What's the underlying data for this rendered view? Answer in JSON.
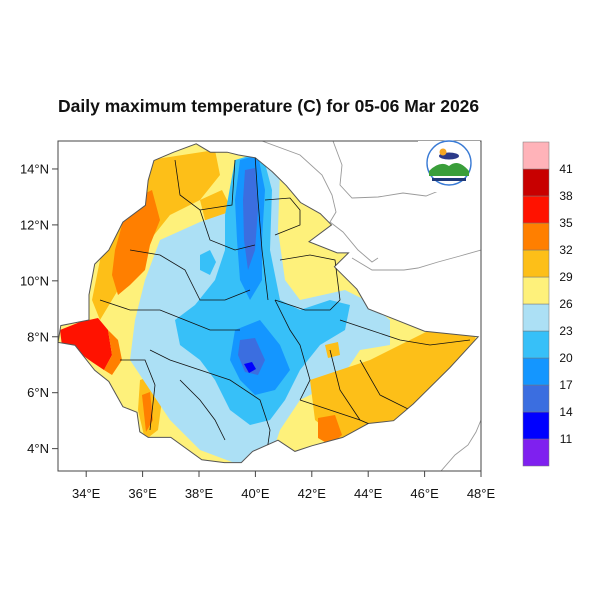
{
  "title": "Daily maximum temperature (C) for 05-06 Mar 2026",
  "map": {
    "region": "Ethiopia",
    "variable": "Daily maximum temperature",
    "units": "C",
    "lon_range": [
      33,
      48
    ],
    "lat_range": [
      3.2,
      15
    ],
    "x_ticks": [
      {
        "value": 34,
        "label": "34°E"
      },
      {
        "value": 36,
        "label": "36°E"
      },
      {
        "value": 38,
        "label": "38°E"
      },
      {
        "value": 40,
        "label": "40°E"
      },
      {
        "value": 42,
        "label": "42°E"
      },
      {
        "value": 44,
        "label": "44°E"
      },
      {
        "value": 46,
        "label": "46°E"
      },
      {
        "value": 48,
        "label": "48°E"
      }
    ],
    "y_ticks": [
      {
        "value": 4,
        "label": "4°N"
      },
      {
        "value": 6,
        "label": "6°N"
      },
      {
        "value": 8,
        "label": "8°N"
      },
      {
        "value": 10,
        "label": "10°N"
      },
      {
        "value": 12,
        "label": "12°N"
      },
      {
        "value": 14,
        "label": "14°N"
      }
    ],
    "logo": {
      "alt": "Ethiopian Meteorology Institute logo"
    }
  },
  "colorbar": {
    "levels": [
      "11",
      "14",
      "17",
      "20",
      "23",
      "26",
      "29",
      "32",
      "35",
      "38",
      "41"
    ],
    "colors": [
      "#7f20ef",
      "#0000ff",
      "#3b6ee0",
      "#1496ff",
      "#37c0f8",
      "#ace0f5",
      "#fef17b",
      "#fdbf18",
      "#ff7f00",
      "#ff1200",
      "#c80000",
      "#ffb3b9"
    ]
  }
}
